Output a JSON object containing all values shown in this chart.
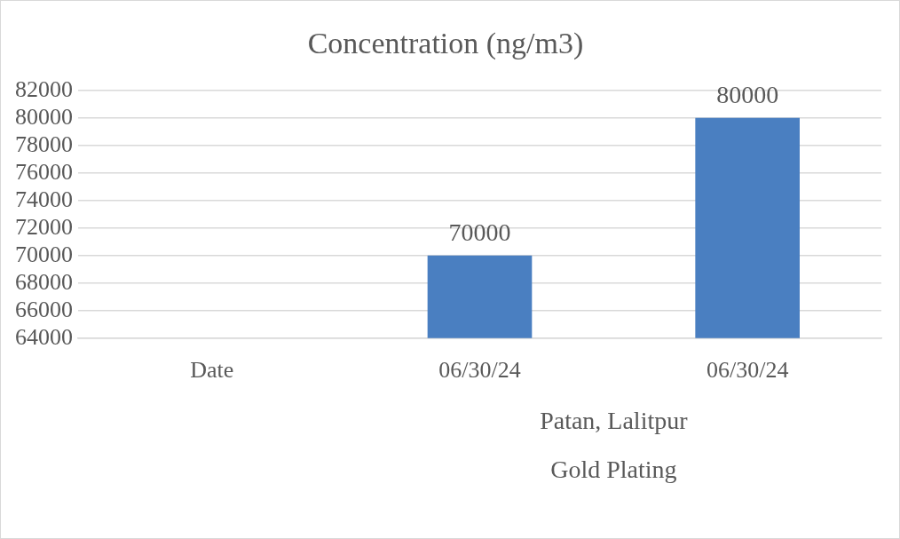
{
  "chart_data": {
    "type": "bar",
    "title": "Concentration (ng/m3)",
    "categories": [
      "Date",
      "06/30/24",
      "06/30/24"
    ],
    "values": [
      null,
      70000,
      80000
    ],
    "color": "#4a7fc1",
    "ylim": [
      64000,
      82000
    ],
    "yticks": [
      64000,
      66000,
      68000,
      70000,
      72000,
      74000,
      76000,
      78000,
      80000,
      82000
    ],
    "grid": "y",
    "data_labels": true,
    "legend": false,
    "annotations": [
      "Patan, Lalitpur",
      "Gold Plating"
    ]
  }
}
